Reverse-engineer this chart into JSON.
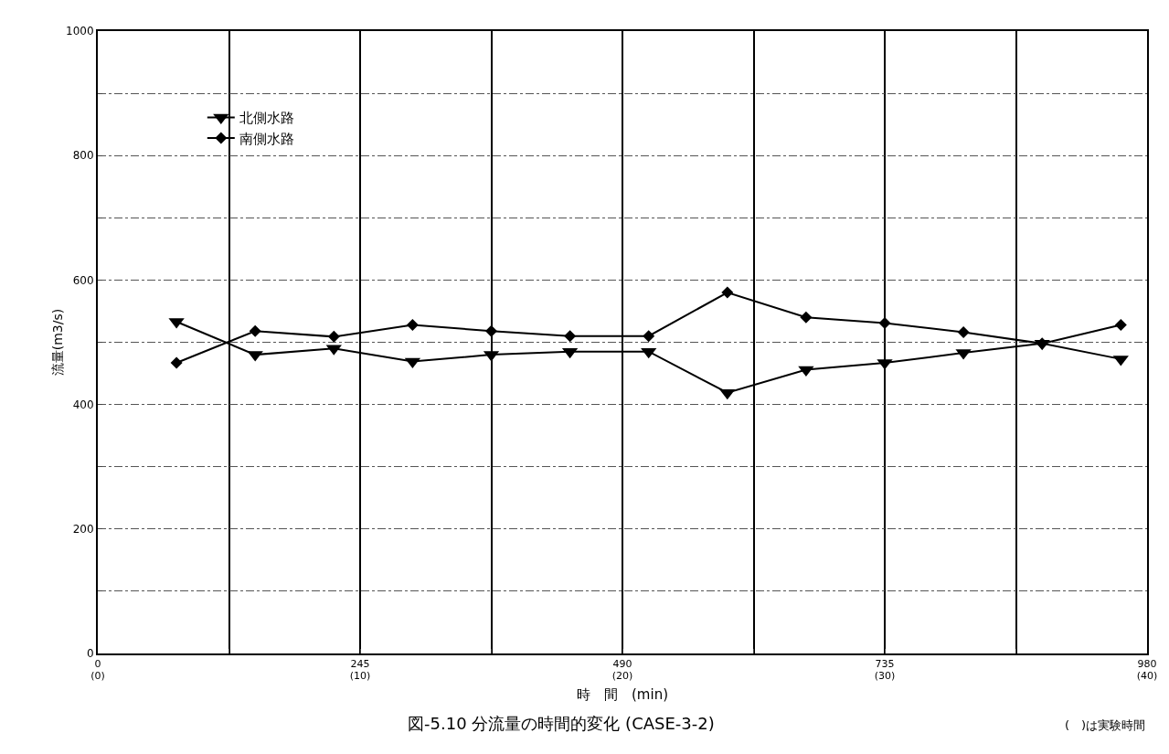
{
  "chart_data": {
    "type": "line",
    "title": "図-5.10 分流量の時間的変化 (CASE-3-2)",
    "xlabel": "時　間　(min)",
    "ylabel": "流量(m3/s)",
    "annotations": [
      "(　)は実験時間"
    ],
    "x": [
      73.5,
      147,
      220.5,
      294,
      367.5,
      441,
      514.5,
      588,
      661.5,
      735,
      808.5,
      882,
      955.5
    ],
    "series": [
      {
        "name": "北側水路",
        "color": "#000000",
        "marker": "triangle",
        "values": [
          533,
          480,
          490,
          469,
          480,
          485,
          485,
          419,
          456,
          467,
          483,
          498,
          473
        ]
      },
      {
        "name": "南側水路",
        "color": "#000000",
        "marker": "diamond",
        "values": [
          467,
          518,
          509,
          528,
          518,
          510,
          510,
          580,
          540,
          531,
          516,
          498,
          528
        ]
      }
    ],
    "xlim": [
      0,
      980
    ],
    "xticks": [
      0,
      {
        "value": 122.5,
        "label": null
      },
      245,
      {
        "value": 367.5,
        "label": null
      },
      490,
      {
        "value": 612.5,
        "label": null
      },
      735,
      {
        "value": 857.5,
        "label": null
      },
      980
    ],
    "x2lim": [
      0,
      40
    ],
    "x2ticks": [
      {
        "value": 0,
        "label": "(0)"
      },
      {
        "value": 10,
        "label": "(10)"
      },
      {
        "value": 20,
        "label": "(20)"
      },
      {
        "value": 30,
        "label": "(30)"
      },
      {
        "value": 40,
        "label": "(40)"
      }
    ],
    "ylim": [
      0,
      1000
    ],
    "yticks": [
      0,
      {
        "value": 100,
        "label": null
      },
      200,
      {
        "value": 300,
        "label": null
      },
      400,
      {
        "value": 500,
        "label": null
      },
      600,
      {
        "value": 700,
        "label": null
      },
      800,
      {
        "value": 900,
        "label": null
      },
      1000
    ],
    "grid": true,
    "legend": "top left",
    "line_style": "solid"
  }
}
